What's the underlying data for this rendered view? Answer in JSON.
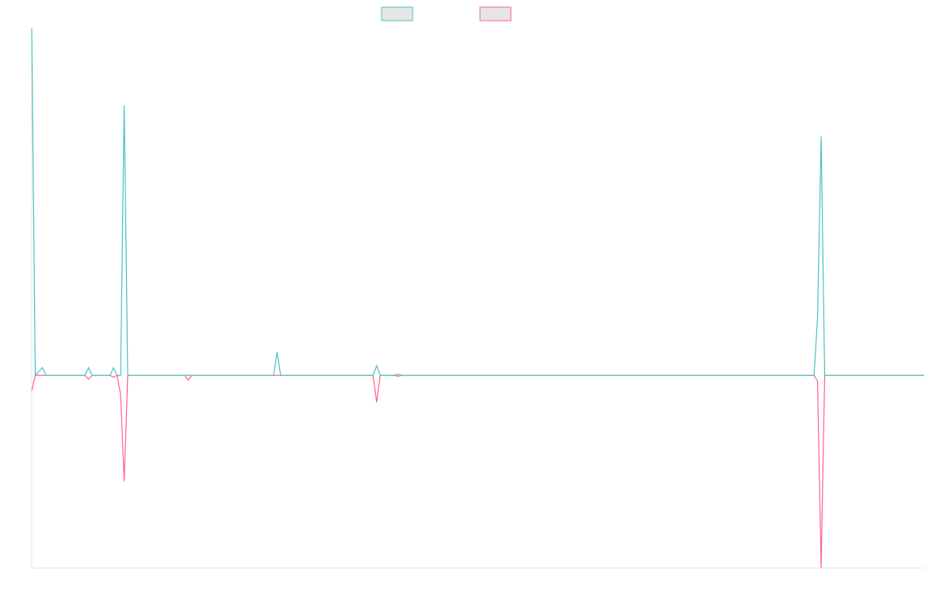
{
  "chart_data": {
    "type": "line",
    "title": "",
    "xlabel": "",
    "ylabel": "",
    "legend_position": "top-center",
    "grid": false,
    "n_points": 252,
    "ylim": [
      -1.0,
      1.8
    ],
    "series": [
      {
        "name": "",
        "color": "#4bc0c0",
        "points": [
          [
            0,
            1.8
          ],
          [
            1,
            0
          ],
          [
            3,
            0.04
          ],
          [
            4,
            0
          ],
          [
            15,
            0
          ],
          [
            16,
            0.04
          ],
          [
            17,
            0
          ],
          [
            22,
            0
          ],
          [
            23,
            0.04
          ],
          [
            24,
            0
          ],
          [
            25,
            0
          ],
          [
            26,
            1.4
          ],
          [
            27,
            0
          ],
          [
            43,
            0
          ],
          [
            44,
            0.001
          ],
          [
            45,
            0
          ],
          [
            68,
            0
          ],
          [
            69,
            0.12
          ],
          [
            70,
            0
          ],
          [
            96,
            0
          ],
          [
            97,
            0.05
          ],
          [
            98,
            0
          ],
          [
            102,
            0
          ],
          [
            103,
            0.005
          ],
          [
            104,
            0
          ],
          [
            220,
            0
          ],
          [
            221,
            0.3
          ],
          [
            222,
            1.24
          ],
          [
            223,
            0
          ],
          [
            251,
            0
          ]
        ]
      },
      {
        "name": "",
        "color": "#ff6384",
        "points": [
          [
            0,
            -0.08
          ],
          [
            1,
            0
          ],
          [
            3,
            0
          ],
          [
            4,
            0
          ],
          [
            15,
            0
          ],
          [
            16,
            -0.02
          ],
          [
            17,
            0
          ],
          [
            22,
            0
          ],
          [
            23,
            -0.01
          ],
          [
            24,
            0
          ],
          [
            25,
            -0.1
          ],
          [
            26,
            -0.55
          ],
          [
            27,
            0
          ],
          [
            43,
            0
          ],
          [
            44,
            -0.025
          ],
          [
            45,
            0
          ],
          [
            96,
            0
          ],
          [
            97,
            -0.14
          ],
          [
            98,
            0
          ],
          [
            102,
            0
          ],
          [
            103,
            -0.005
          ],
          [
            104,
            0
          ],
          [
            220,
            0
          ],
          [
            221,
            -0.03
          ],
          [
            222,
            -1.0
          ],
          [
            223,
            0
          ],
          [
            251,
            0
          ]
        ]
      }
    ]
  }
}
